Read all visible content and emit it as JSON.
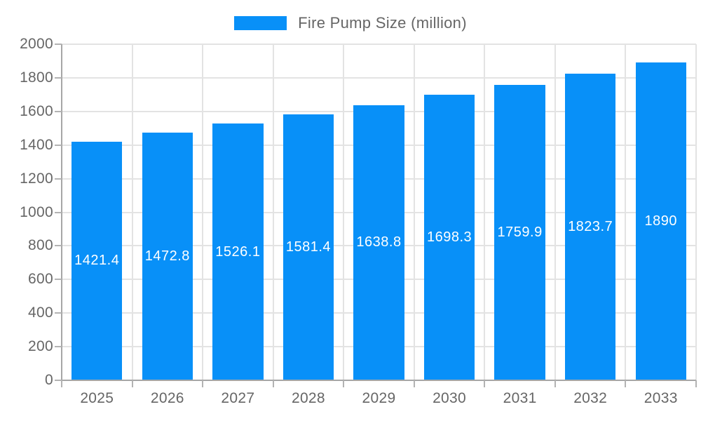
{
  "legend": {
    "label": "Fire Pump Size (million)",
    "swatch_color": "#0890f8"
  },
  "chart_data": {
    "type": "bar",
    "title": "",
    "series_name": "Fire Pump Size (million)",
    "categories": [
      "2025",
      "2026",
      "2027",
      "2028",
      "2029",
      "2030",
      "2031",
      "2032",
      "2033"
    ],
    "values": [
      1421.4,
      1472.8,
      1526.1,
      1581.4,
      1638.8,
      1698.3,
      1759.9,
      1823.7,
      1890
    ],
    "value_labels": [
      "1421.4",
      "1472.8",
      "1526.1",
      "1581.4",
      "1638.8",
      "1698.3",
      "1759.9",
      "1823.7",
      "1890"
    ],
    "ytick_labels": [
      "0",
      "200",
      "400",
      "600",
      "800",
      "1000",
      "1200",
      "1400",
      "1600",
      "1800",
      "2000"
    ],
    "ylim": [
      0,
      2000
    ],
    "ytick_step": 200,
    "grid": true,
    "legend_position": "top",
    "bar_color": "#0890f8",
    "value_label_color": "#ffffff",
    "axis_label_color": "#666666",
    "gridline_color": "#e3e3e3",
    "axis_line_color": "#a6a6a6"
  }
}
